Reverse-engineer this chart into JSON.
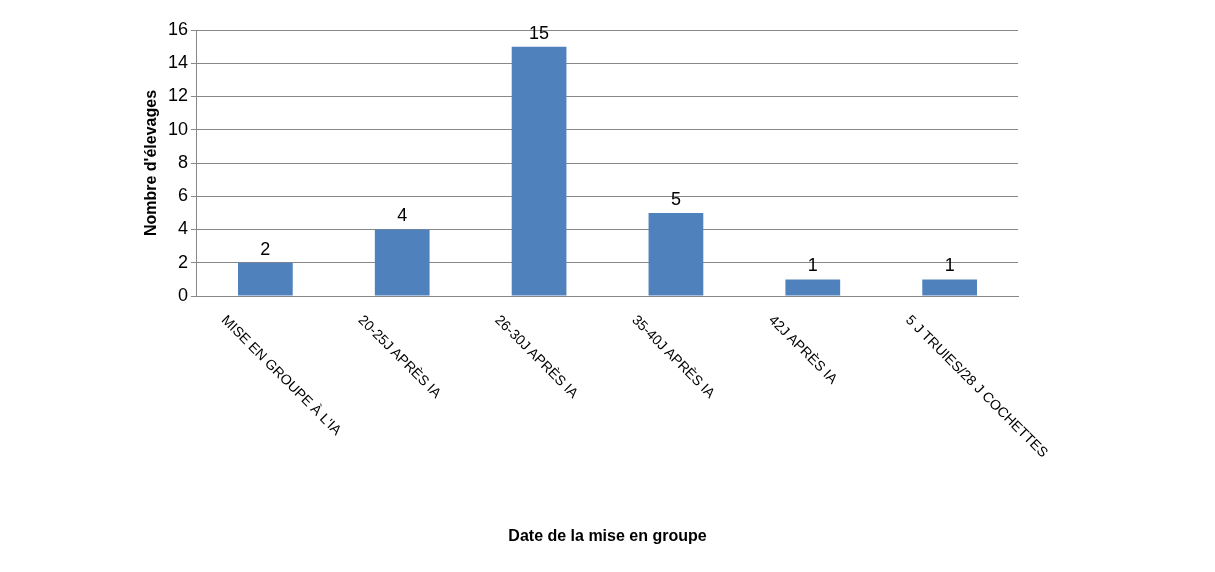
{
  "chart_data": {
    "type": "bar",
    "xlabel": "Date de la mise en groupe",
    "ylabel": "Nombre d'élevages",
    "categories": [
      "MISE EN GROUPE À L'IA",
      "20-25J APRÈS IA",
      "26-30J APRÈS IA",
      "35-40J APRÈS IA",
      "42J APRÈS IA",
      "5 J TRUIES/28 J COCHETTES"
    ],
    "values": [
      2,
      4,
      15,
      5,
      1,
      1
    ],
    "color": "#4f81bd",
    "ylim": [
      0,
      16
    ],
    "yticks": [
      0,
      2,
      4,
      6,
      8,
      10,
      12,
      14,
      16
    ],
    "grid": "y",
    "data_labels": true
  }
}
